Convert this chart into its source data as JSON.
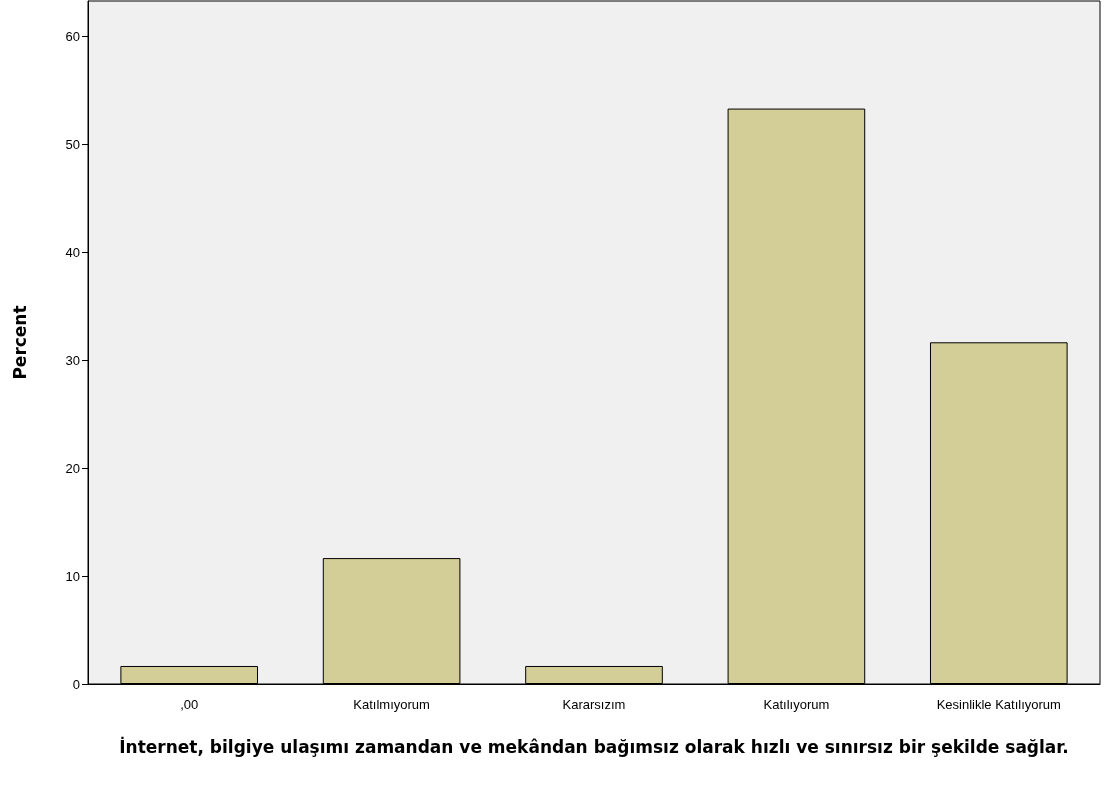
{
  "chart_data": {
    "type": "bar",
    "xlabel": "İnternet, bilgiye ulaşımı zamandan ve mekândan bağımsız olarak hızlı ve sınırsız bir şekilde sağlar.",
    "ylabel": "Percent",
    "categories": [
      ",00",
      "Katılmıyorum",
      "Kararsızım",
      "Katılıyorum",
      "Kesinlikle Katılıyorum"
    ],
    "values": [
      1.67,
      11.67,
      1.67,
      53.33,
      31.67
    ],
    "color": "#d3ce97",
    "ylim": [
      0,
      63.3
    ],
    "yticks": [
      0,
      10,
      20,
      30,
      40,
      50,
      60
    ],
    "grid": false
  }
}
